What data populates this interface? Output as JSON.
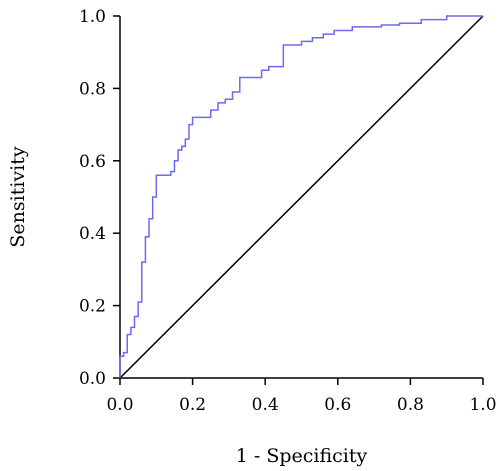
{
  "chart_data": {
    "type": "line",
    "title": "",
    "xlabel": "1 - Specificity",
    "ylabel": "Sensitivity",
    "xlim": [
      0,
      1
    ],
    "ylim": [
      0,
      1
    ],
    "xticks": [
      "0.0",
      "0.2",
      "0.4",
      "0.6",
      "0.8",
      "1.0"
    ],
    "yticks": [
      "0.0",
      "0.2",
      "0.4",
      "0.6",
      "0.8",
      "1.0"
    ],
    "grid": false,
    "legend": "none",
    "colors": {
      "roc": "#6b6bf0",
      "reference": "#000000",
      "axis": "#000000"
    },
    "series": [
      {
        "x": [
          0,
          0,
          0.01,
          0.01,
          0.02,
          0.02,
          0.03,
          0.03,
          0.04,
          0.04,
          0.05,
          0.05,
          0.06,
          0.06,
          0.07,
          0.07,
          0.08,
          0.08,
          0.09,
          0.09,
          0.1,
          0.1,
          0.12,
          0.12,
          0.14,
          0.14,
          0.15,
          0.15,
          0.16,
          0.16,
          0.17,
          0.17,
          0.18,
          0.18,
          0.19,
          0.19,
          0.2,
          0.2,
          0.25,
          0.25,
          0.27,
          0.27,
          0.29,
          0.29,
          0.31,
          0.31,
          0.33,
          0.33,
          0.36,
          0.36,
          0.39,
          0.39,
          0.41,
          0.41,
          0.43,
          0.43,
          0.45,
          0.45,
          0.5,
          0.5,
          0.53,
          0.53,
          0.56,
          0.56,
          0.59,
          0.59,
          0.64,
          0.64,
          0.72,
          0.72,
          0.77,
          0.77,
          0.83,
          0.83,
          0.9,
          0.9,
          1.0
        ],
        "y": [
          0,
          0.06,
          0.06,
          0.07,
          0.07,
          0.12,
          0.12,
          0.14,
          0.14,
          0.17,
          0.17,
          0.21,
          0.21,
          0.32,
          0.32,
          0.39,
          0.39,
          0.44,
          0.44,
          0.5,
          0.5,
          0.56,
          0.56,
          0.56,
          0.56,
          0.57,
          0.57,
          0.6,
          0.6,
          0.63,
          0.63,
          0.64,
          0.64,
          0.66,
          0.66,
          0.7,
          0.7,
          0.72,
          0.72,
          0.74,
          0.74,
          0.76,
          0.76,
          0.77,
          0.77,
          0.79,
          0.79,
          0.83,
          0.83,
          0.83,
          0.83,
          0.85,
          0.85,
          0.86,
          0.86,
          0.86,
          0.86,
          0.92,
          0.92,
          0.93,
          0.93,
          0.94,
          0.94,
          0.95,
          0.95,
          0.96,
          0.96,
          0.97,
          0.97,
          0.975,
          0.975,
          0.98,
          0.98,
          0.99,
          0.99,
          1.0,
          1.0
        ]
      },
      {
        "x": [
          0,
          1
        ],
        "y": [
          0,
          1
        ]
      }
    ]
  }
}
